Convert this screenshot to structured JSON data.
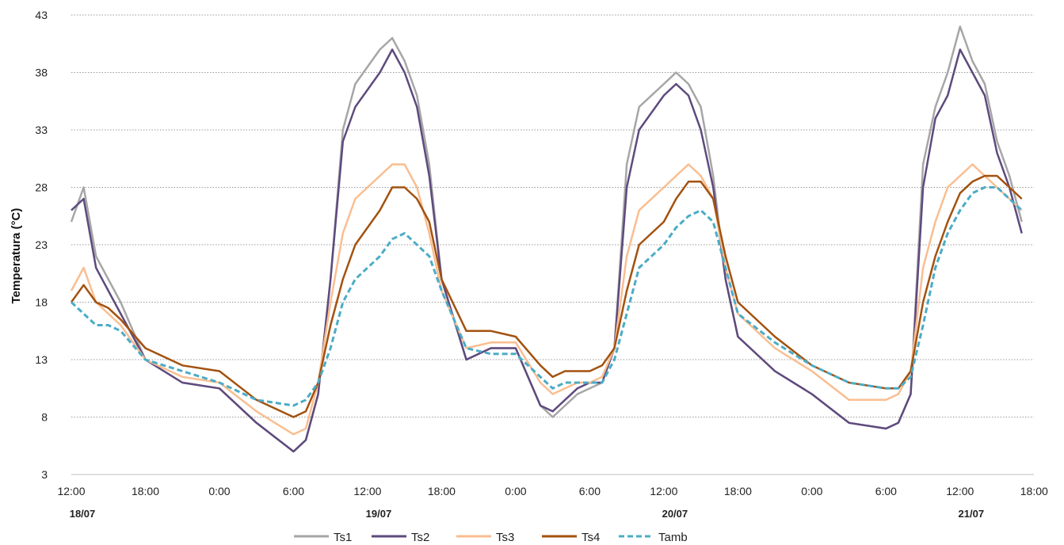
{
  "chart_data": {
    "type": "line",
    "title": "",
    "xlabel": "",
    "ylabel": "Temperatura (°C)",
    "ylim": [
      3,
      43
    ],
    "yticks": [
      "3",
      "8",
      "13",
      "18",
      "23",
      "28",
      "33",
      "38",
      "43"
    ],
    "xlim_hours": [
      0,
      102
    ],
    "xticks": [
      "12:00",
      "18:00",
      "0:00",
      "6:00",
      "12:00",
      "18:00",
      "0:00",
      "6:00",
      "12:00",
      "18:00",
      "0:00",
      "6:00",
      "12:00",
      "18:00"
    ],
    "date_labels": [
      {
        "text": "18/07",
        "tick": 0
      },
      {
        "text": "19/07",
        "tick": 4
      },
      {
        "text": "20/07",
        "tick": 8
      },
      {
        "text": "21/07",
        "tick": 12
      }
    ],
    "grid": true,
    "legend": "bottom",
    "x": [
      "18/07 12:00",
      "18/07 13:00",
      "18/07 14:00",
      "18/07 15:00",
      "18/07 16:00",
      "18/07 18:00",
      "18/07 21:00",
      "19/07 0:00",
      "19/07 3:00",
      "19/07 6:00",
      "19/07 7:00",
      "19/07 8:00",
      "19/07 9:00",
      "19/07 10:00",
      "19/07 11:00",
      "19/07 13:00",
      "19/07 14:00",
      "19/07 15:00",
      "19/07 16:00",
      "19/07 17:00",
      "19/07 18:00",
      "19/07 20:00",
      "19/07 22:00",
      "20/07 0:00",
      "20/07 2:00",
      "20/07 3:00",
      "20/07 4:00",
      "20/07 5:00",
      "20/07 6:00",
      "20/07 7:00",
      "20/07 8:00",
      "20/07 9:00",
      "20/07 10:00",
      "20/07 12:00",
      "20/07 13:00",
      "20/07 14:00",
      "20/07 15:00",
      "20/07 16:00",
      "20/07 17:00",
      "20/07 18:00",
      "20/07 21:00",
      "21/07 0:00",
      "21/07 3:00",
      "21/07 6:00",
      "21/07 7:00",
      "21/07 8:00",
      "21/07 9:00",
      "21/07 10:00",
      "21/07 11:00",
      "21/07 12:00",
      "21/07 13:00",
      "21/07 14:00",
      "21/07 15:00",
      "21/07 16:00",
      "21/07 17:00"
    ],
    "series": [
      {
        "name": "Ts1",
        "color": "#a6a6a6",
        "dash": "solid",
        "values": [
          25,
          28,
          22,
          20,
          18,
          13,
          11,
          10.5,
          7.5,
          5,
          6,
          10,
          20,
          33,
          37,
          40,
          41,
          39,
          36,
          30,
          20,
          13,
          14,
          14,
          9,
          8,
          9,
          10,
          10.5,
          11,
          14,
          30,
          35,
          37,
          38,
          37,
          35,
          29,
          20,
          15,
          12,
          10,
          7.5,
          7,
          7.5,
          10,
          30,
          35,
          38,
          42,
          39,
          37,
          32,
          29,
          25
        ]
      },
      {
        "name": "Ts2",
        "color": "#5e4a7e",
        "dash": "solid",
        "values": [
          26,
          27,
          21,
          19,
          17,
          13,
          11,
          10.5,
          7.5,
          5,
          6,
          10,
          20,
          32,
          35,
          38,
          40,
          38,
          35,
          29,
          20,
          13,
          14,
          14,
          9,
          8.5,
          9.5,
          10.5,
          11,
          11,
          14,
          28,
          33,
          36,
          37,
          36,
          33,
          28,
          20,
          15,
          12,
          10,
          7.5,
          7,
          7.5,
          10,
          28,
          34,
          36,
          40,
          38,
          36,
          31,
          28,
          24
        ]
      },
      {
        "name": "Ts3",
        "color": "#f9be91",
        "dash": "solid",
        "values": [
          19,
          21,
          18,
          17,
          16,
          13,
          11.5,
          11,
          8.5,
          6.5,
          7,
          11,
          18,
          24,
          27,
          29,
          30,
          30,
          28,
          24,
          19,
          14,
          14.5,
          14.5,
          11,
          10,
          10.5,
          11,
          11,
          11.5,
          14,
          22,
          26,
          28,
          29,
          30,
          29,
          27,
          21,
          17,
          14,
          12,
          9.5,
          9.5,
          10,
          12,
          21,
          25,
          28,
          29,
          30,
          29,
          28,
          27,
          26
        ]
      },
      {
        "name": "Ts4",
        "color": "#a3520f",
        "dash": "solid",
        "values": [
          18,
          19.5,
          18,
          17.5,
          16.5,
          14,
          12.5,
          12,
          9.5,
          8,
          8.5,
          11,
          16,
          20,
          23,
          26,
          28,
          28,
          27,
          25,
          20,
          15.5,
          15.5,
          15,
          12.5,
          11.5,
          12,
          12,
          12,
          12.5,
          14,
          19,
          23,
          25,
          27,
          28.5,
          28.5,
          27,
          22,
          18,
          15,
          12.5,
          11,
          10.5,
          10.5,
          12,
          18,
          22,
          25,
          27.5,
          28.5,
          29,
          29,
          28,
          27
        ]
      },
      {
        "name": "Tamb",
        "color": "#4bacc6",
        "dash": "dashed",
        "values": [
          18,
          17,
          16,
          16,
          15.5,
          13,
          12,
          11,
          9.5,
          9,
          9.5,
          11,
          14,
          18,
          20,
          22,
          23.5,
          24,
          23,
          22,
          19,
          14,
          13.5,
          13.5,
          11.5,
          10.5,
          11,
          11,
          11,
          11,
          13,
          17,
          21,
          23,
          24.5,
          25.5,
          26,
          25,
          21,
          17,
          14.5,
          12.5,
          11,
          10.5,
          10.5,
          11.5,
          16,
          21,
          24,
          26,
          27.5,
          28,
          28,
          27,
          26
        ]
      }
    ]
  }
}
